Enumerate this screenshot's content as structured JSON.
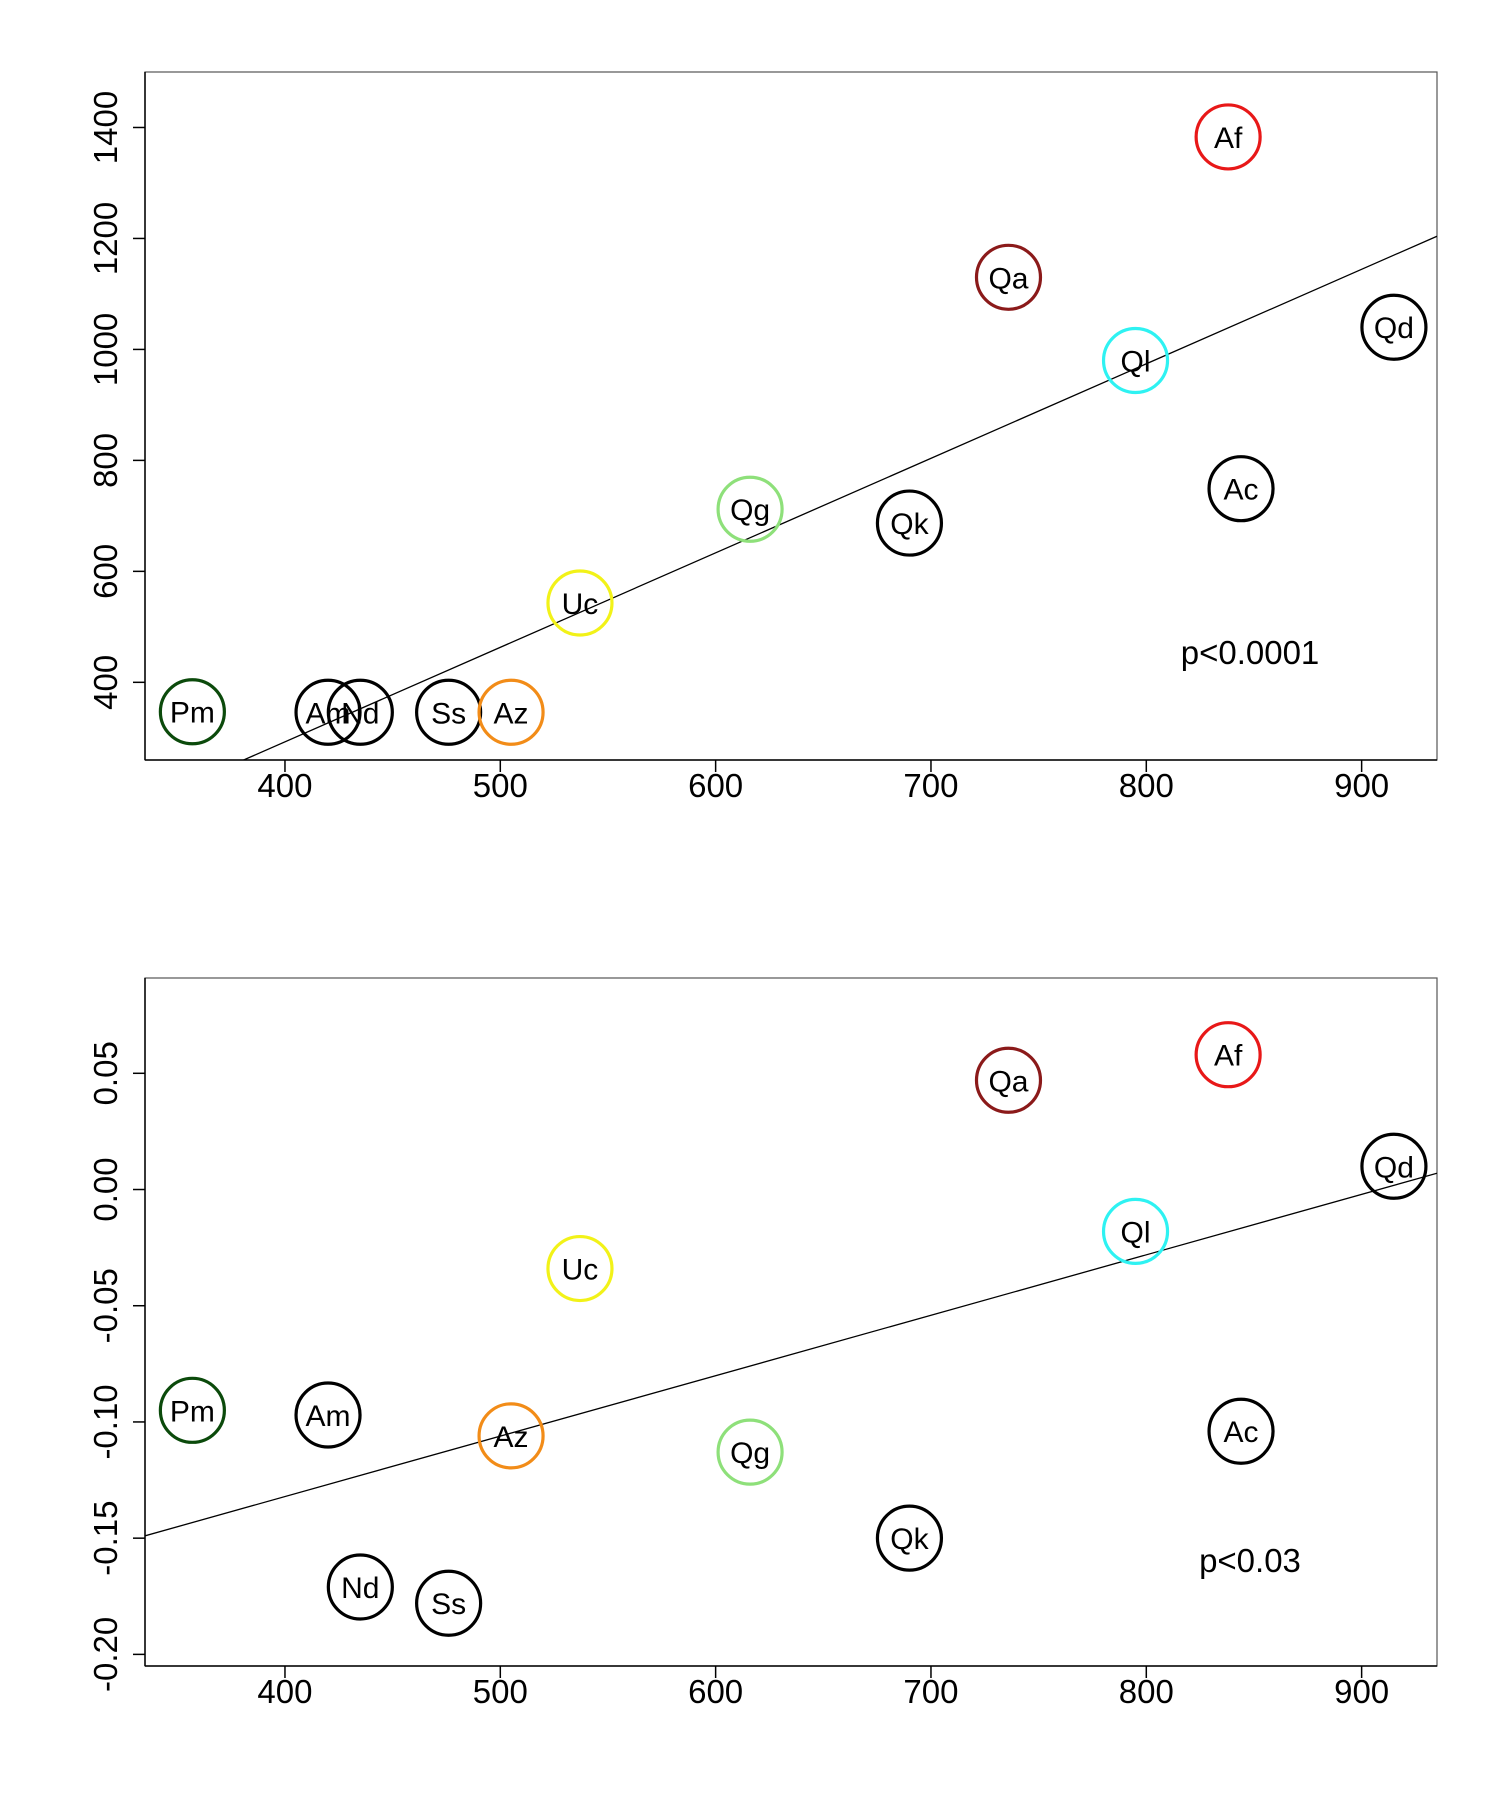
{
  "chart_data": [
    {
      "type": "scatter",
      "title": "",
      "xlabel": "",
      "ylabel": "",
      "xlim": [
        335,
        935
      ],
      "ylim": [
        260,
        1500
      ],
      "xticks": [
        400,
        500,
        600,
        700,
        800,
        900
      ],
      "yticks": [
        400,
        600,
        800,
        1000,
        1200,
        1400
      ],
      "grid": false,
      "annotation": "p<0.0001",
      "trendline": {
        "x": [
          335,
          935
        ],
        "y": [
          182,
          1204
        ]
      },
      "points": [
        {
          "label": "Pm",
          "x": 357,
          "y": 347,
          "color": "#0b4a0b"
        },
        {
          "label": "Am",
          "x": 420,
          "y": 346,
          "color": "#000000"
        },
        {
          "label": "Nd",
          "x": 435,
          "y": 346,
          "color": "#000000"
        },
        {
          "label": "Ss",
          "x": 476,
          "y": 346,
          "color": "#000000"
        },
        {
          "label": "Az",
          "x": 505,
          "y": 346,
          "color": "#f28c18"
        },
        {
          "label": "Uc",
          "x": 537,
          "y": 543,
          "color": "#f2f218"
        },
        {
          "label": "Qg",
          "x": 616,
          "y": 712,
          "color": "#8ee07a"
        },
        {
          "label": "Qk",
          "x": 690,
          "y": 687,
          "color": "#000000"
        },
        {
          "label": "Qa",
          "x": 736,
          "y": 1130,
          "color": "#8b1a1a"
        },
        {
          "label": "Ql",
          "x": 795,
          "y": 980,
          "color": "#2ef2f2"
        },
        {
          "label": "Af",
          "x": 838,
          "y": 1383,
          "color": "#e81818"
        },
        {
          "label": "Ac",
          "x": 844,
          "y": 749,
          "color": "#000000"
        },
        {
          "label": "Qd",
          "x": 915,
          "y": 1040,
          "color": "#000000"
        }
      ]
    },
    {
      "type": "scatter",
      "title": "",
      "xlabel": "",
      "ylabel": "",
      "xlim": [
        335,
        935
      ],
      "ylim": [
        -0.205,
        0.091
      ],
      "xticks": [
        400,
        500,
        600,
        700,
        800,
        900
      ],
      "yticks": [
        -0.2,
        -0.15,
        -0.1,
        -0.05,
        0.0,
        0.05
      ],
      "ytick_labels": [
        "-0.20",
        "-0.15",
        "-0.10",
        "-0.05",
        "0.00",
        "0.05"
      ],
      "grid": false,
      "annotation": "p<0.03",
      "trendline": {
        "x": [
          335,
          935
        ],
        "y": [
          -0.149,
          0.007
        ]
      },
      "points": [
        {
          "label": "Pm",
          "x": 357,
          "y": -0.095,
          "color": "#0b4a0b"
        },
        {
          "label": "Am",
          "x": 420,
          "y": -0.097,
          "color": "#000000"
        },
        {
          "label": "Nd",
          "x": 435,
          "y": -0.171,
          "color": "#000000"
        },
        {
          "label": "Ss",
          "x": 476,
          "y": -0.178,
          "color": "#000000"
        },
        {
          "label": "Az",
          "x": 505,
          "y": -0.106,
          "color": "#f28c18"
        },
        {
          "label": "Uc",
          "x": 537,
          "y": -0.034,
          "color": "#f2f218"
        },
        {
          "label": "Qg",
          "x": 616,
          "y": -0.113,
          "color": "#8ee07a"
        },
        {
          "label": "Qk",
          "x": 690,
          "y": -0.15,
          "color": "#000000"
        },
        {
          "label": "Qa",
          "x": 736,
          "y": 0.047,
          "color": "#8b1a1a"
        },
        {
          "label": "Ql",
          "x": 795,
          "y": -0.018,
          "color": "#2ef2f2"
        },
        {
          "label": "Af",
          "x": 838,
          "y": 0.058,
          "color": "#e81818"
        },
        {
          "label": "Ac",
          "x": 844,
          "y": -0.104,
          "color": "#000000"
        },
        {
          "label": "Qd",
          "x": 915,
          "y": 0.01,
          "color": "#000000"
        }
      ]
    }
  ]
}
